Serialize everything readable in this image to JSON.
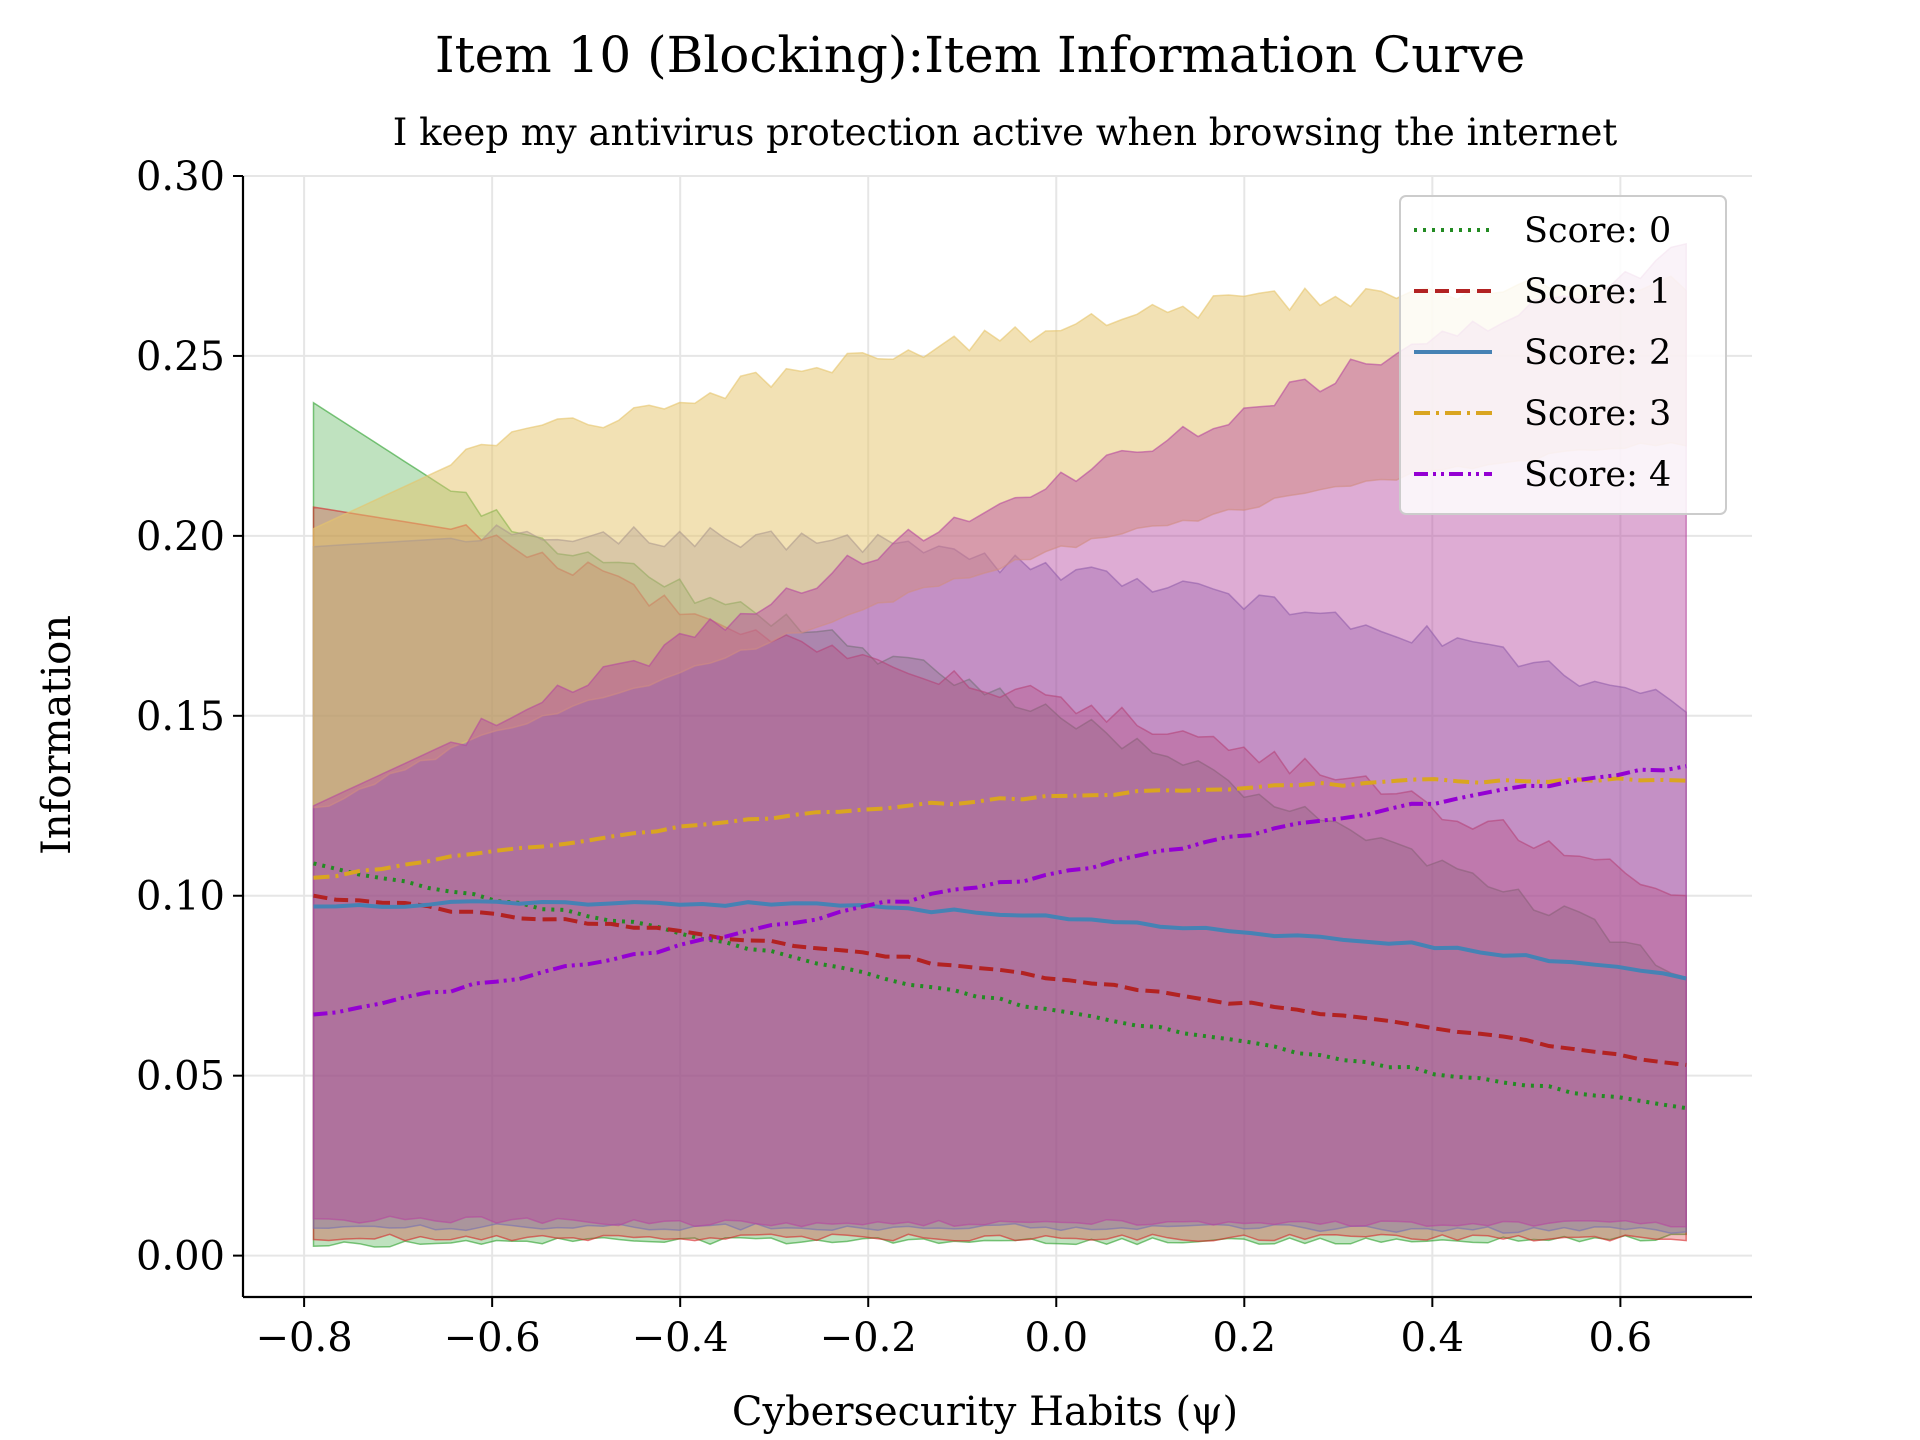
{
  "chart_data": {
    "type": "line",
    "title": "Item 10 (Blocking):Item Information Curve",
    "subtitle": "I keep my antivirus protection active when browsing the internet",
    "xlabel": "Cybersecurity Habits (ψ)",
    "ylabel": "Information",
    "xlim": [
      -0.865,
      0.74
    ],
    "ylim": [
      -0.0115,
      0.3
    ],
    "xticks": [
      -0.8,
      -0.6,
      -0.4,
      -0.2,
      0.0,
      0.2,
      0.4,
      0.6
    ],
    "xtick_labels": [
      "−0.8",
      "−0.6",
      "−0.4",
      "−0.2",
      "0.0",
      "0.2",
      "0.4",
      "0.6"
    ],
    "yticks": [
      0.0,
      0.05,
      0.1,
      0.15,
      0.2,
      0.25,
      0.3
    ],
    "ytick_labels": [
      "0.00",
      "0.05",
      "0.10",
      "0.15",
      "0.20",
      "0.25",
      "0.30"
    ],
    "grid": true,
    "legend_position": "top-right",
    "series": [
      {
        "name": "Score: 0",
        "color": "#228B22",
        "dash": "dotted",
        "x": [
          -0.79,
          -0.6,
          -0.4,
          -0.2,
          0.0,
          0.2,
          0.4,
          0.6,
          0.67
        ],
        "values": [
          0.109,
          0.099,
          0.09,
          0.078,
          0.068,
          0.059,
          0.051,
          0.044,
          0.041
        ],
        "band_upper": [
          0.237,
          0.205,
          0.185,
          0.168,
          0.15,
          0.13,
          0.11,
          0.088,
          0.077
        ],
        "band_lower": [
          0.003,
          0.004,
          0.004,
          0.004,
          0.004,
          0.004,
          0.004,
          0.005,
          0.005
        ]
      },
      {
        "name": "Score: 1",
        "color": "#B22222",
        "dash": "dashed",
        "x": [
          -0.79,
          -0.6,
          -0.4,
          -0.2,
          0.0,
          0.2,
          0.4,
          0.6,
          0.67
        ],
        "values": [
          0.1,
          0.095,
          0.09,
          0.084,
          0.077,
          0.07,
          0.063,
          0.056,
          0.053
        ],
        "band_upper": [
          0.208,
          0.2,
          0.18,
          0.165,
          0.155,
          0.14,
          0.125,
          0.108,
          0.101
        ],
        "band_lower": [
          0.005,
          0.005,
          0.005,
          0.005,
          0.005,
          0.005,
          0.005,
          0.005,
          0.005
        ]
      },
      {
        "name": "Score: 2",
        "color": "#4682B4",
        "dash": "solid",
        "x": [
          -0.79,
          -0.6,
          -0.4,
          -0.2,
          0.0,
          0.2,
          0.4,
          0.6,
          0.67
        ],
        "values": [
          0.097,
          0.098,
          0.098,
          0.097,
          0.094,
          0.09,
          0.086,
          0.08,
          0.077
        ],
        "band_upper": [
          0.197,
          0.2,
          0.2,
          0.198,
          0.19,
          0.182,
          0.172,
          0.158,
          0.152
        ],
        "band_lower": [
          0.008,
          0.008,
          0.008,
          0.008,
          0.008,
          0.008,
          0.007,
          0.007,
          0.007
        ]
      },
      {
        "name": "Score: 3",
        "color": "#DAA520",
        "dash": "dashdot",
        "x": [
          -0.79,
          -0.6,
          -0.4,
          -0.2,
          0.0,
          0.2,
          0.4,
          0.6,
          0.67
        ],
        "values": [
          0.105,
          0.112,
          0.119,
          0.124,
          0.128,
          0.13,
          0.132,
          0.132,
          0.132
        ],
        "band_upper": [
          0.202,
          0.225,
          0.238,
          0.25,
          0.258,
          0.265,
          0.268,
          0.27,
          0.27
        ],
        "band_lower": [
          0.124,
          0.145,
          0.162,
          0.18,
          0.196,
          0.208,
          0.218,
          0.225,
          0.225
        ]
      },
      {
        "name": "Score: 4",
        "color": "#9400D3",
        "dash": "dashdotdot",
        "x": [
          -0.79,
          -0.6,
          -0.4,
          -0.2,
          0.0,
          0.2,
          0.4,
          0.6,
          0.67
        ],
        "values": [
          0.067,
          0.076,
          0.086,
          0.097,
          0.106,
          0.117,
          0.126,
          0.134,
          0.136
        ],
        "band_upper": [
          0.125,
          0.148,
          0.17,
          0.195,
          0.215,
          0.235,
          0.255,
          0.27,
          0.283
        ],
        "band_lower": [
          0.01,
          0.01,
          0.009,
          0.009,
          0.009,
          0.009,
          0.009,
          0.009,
          0.009
        ]
      }
    ]
  }
}
